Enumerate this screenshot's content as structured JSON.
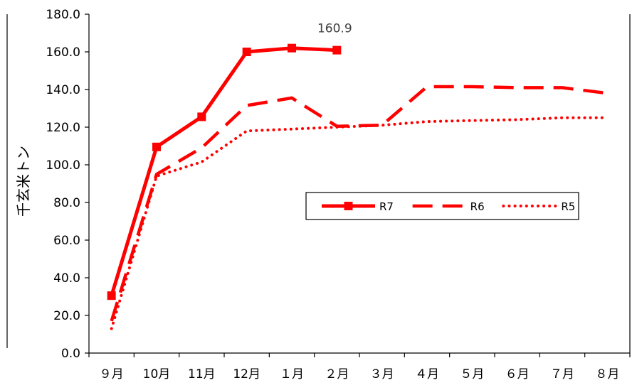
{
  "chart_data": {
    "type": "line",
    "ylabel": "千玄米トン",
    "categories": [
      "９月",
      "10月",
      "11月",
      "12月",
      "１月",
      "２月",
      "３月",
      "４月",
      "５月",
      "６月",
      "７月",
      "８月"
    ],
    "ylim": [
      0,
      180
    ],
    "yticks": [
      "0.0",
      "20.0",
      "40.0",
      "60.0",
      "80.0",
      "100.0",
      "120.0",
      "140.0",
      "160.0",
      "180.0"
    ],
    "grid": false,
    "legend_position": "center-right",
    "series": [
      {
        "name": "R7",
        "style": "solid-square-markers",
        "color": "#ff0000",
        "values": [
          30.5,
          109.5,
          125.5,
          160.0,
          162.0,
          160.9,
          null,
          null,
          null,
          null,
          null,
          null
        ]
      },
      {
        "name": "R6",
        "style": "dashed",
        "color": "#ff0000",
        "values": [
          17.0,
          95.0,
          109.0,
          131.5,
          135.5,
          120.5,
          121.0,
          141.5,
          141.5,
          141.0,
          141.0,
          138.0
        ]
      },
      {
        "name": "R5",
        "style": "dotted",
        "color": "#ff0000",
        "values": [
          13.0,
          94.0,
          101.5,
          118.0,
          119.0,
          120.0,
          121.0,
          123.0,
          123.5,
          124.0,
          125.0,
          125.0
        ]
      }
    ],
    "annotations": [
      {
        "text": "160.9",
        "series": "R7",
        "category": "２月"
      }
    ]
  }
}
